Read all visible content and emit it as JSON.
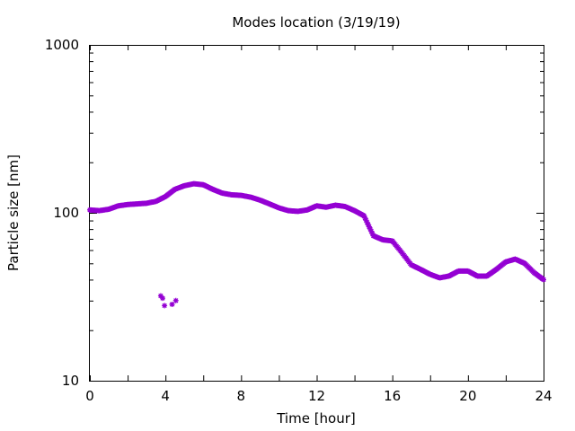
{
  "chart_data": {
    "type": "scatter",
    "title": "Modes location (3/19/19)",
    "xlabel": "Time [hour]",
    "ylabel": "Particle size [nm]",
    "xlim": [
      0,
      24
    ],
    "ylim": [
      10,
      1000
    ],
    "yscale": "log",
    "grid": false,
    "legend": "none",
    "x_ticks": [
      "0",
      "4",
      "8",
      "12",
      "16",
      "20",
      "24"
    ],
    "y_ticks": [
      "10",
      "100",
      "1000"
    ],
    "marker_color": "#9400d3",
    "series": [
      {
        "values": [
          [
            0,
            104
          ],
          [
            0.5,
            103
          ],
          [
            1,
            105
          ],
          [
            1.5,
            110
          ],
          [
            2,
            112
          ],
          [
            2.5,
            113
          ],
          [
            3,
            114
          ],
          [
            3.5,
            117
          ],
          [
            4,
            125
          ],
          [
            4.5,
            138
          ],
          [
            5,
            145
          ],
          [
            5.5,
            149
          ],
          [
            6,
            147
          ],
          [
            6.5,
            138
          ],
          [
            7,
            131
          ],
          [
            7.5,
            128
          ],
          [
            8,
            127
          ],
          [
            8.5,
            124
          ],
          [
            9,
            119
          ],
          [
            9.5,
            113
          ],
          [
            10,
            107
          ],
          [
            10.5,
            103
          ],
          [
            11,
            102
          ],
          [
            11.5,
            104
          ],
          [
            12,
            110
          ],
          [
            12.5,
            108
          ],
          [
            13,
            111
          ],
          [
            13.5,
            109
          ],
          [
            14,
            103
          ],
          [
            14.5,
            96
          ],
          [
            15,
            73
          ],
          [
            15.5,
            69
          ],
          [
            16,
            68
          ],
          [
            16.5,
            58
          ],
          [
            17,
            49
          ],
          [
            17.5,
            46
          ],
          [
            18,
            43
          ],
          [
            18.5,
            41
          ],
          [
            19,
            42
          ],
          [
            19.5,
            45
          ],
          [
            20,
            45
          ],
          [
            20.5,
            42
          ],
          [
            21,
            42
          ],
          [
            21.5,
            46
          ],
          [
            22,
            51
          ],
          [
            22.5,
            53
          ],
          [
            23,
            50
          ],
          [
            23.5,
            44
          ],
          [
            24,
            40
          ]
        ]
      },
      {
        "values": [
          [
            3.75,
            32
          ],
          [
            3.85,
            31
          ],
          [
            3.95,
            28
          ],
          [
            4.35,
            28.5
          ],
          [
            4.55,
            30
          ]
        ]
      }
    ]
  }
}
